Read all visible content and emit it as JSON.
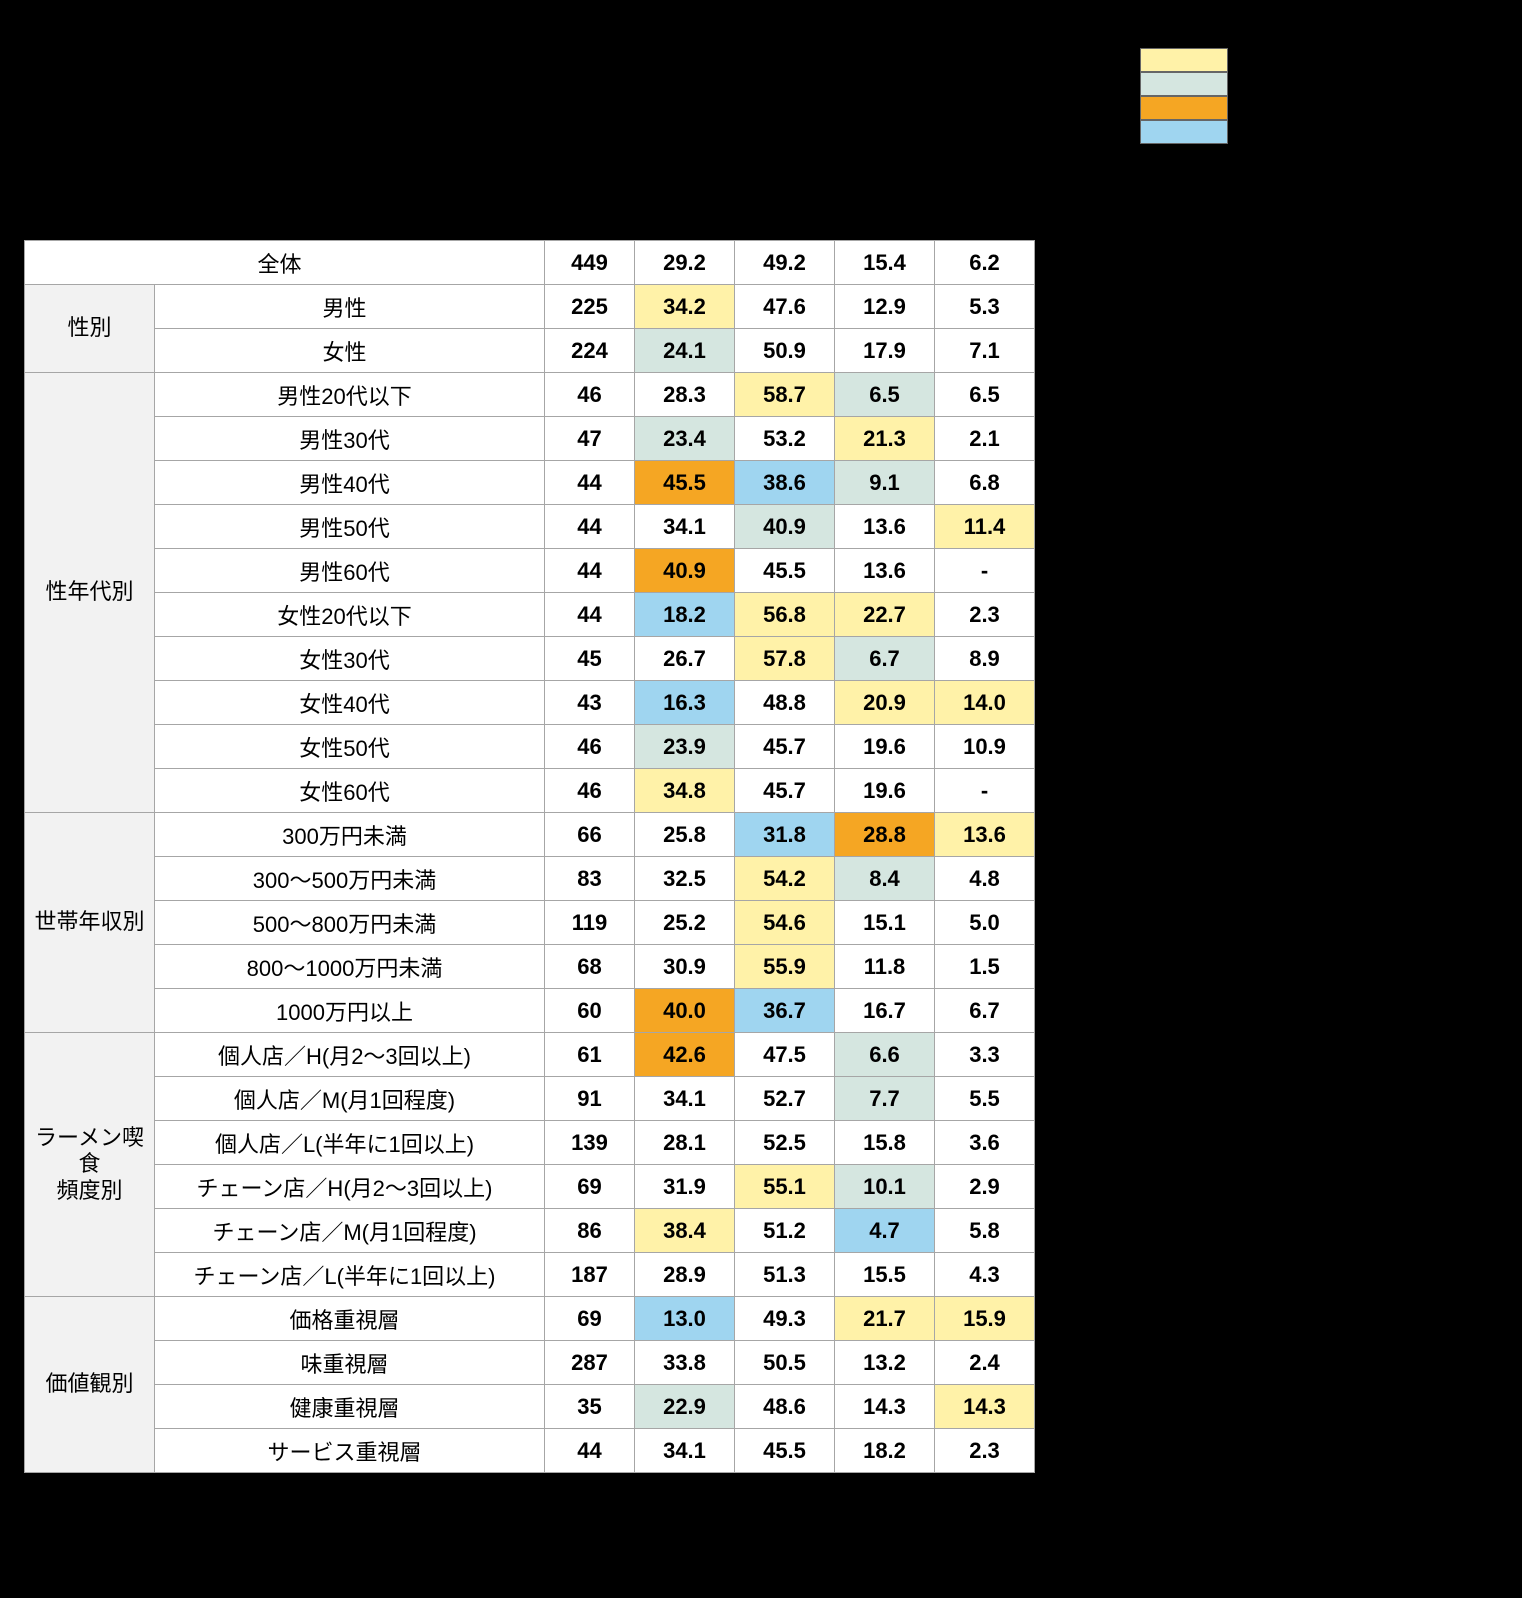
{
  "legend": {
    "colors": [
      "#fff2a8",
      "#d5e6e0",
      "#f5a623",
      "#9fd5f0"
    ]
  },
  "colors": {
    "yellow": "#fff2a8",
    "mint": "#d5e6e0",
    "orange": "#f5a623",
    "blue": "#9fd5f0",
    "white": "#ffffff"
  },
  "columns": {
    "count": 4
  },
  "total": {
    "label": "全体",
    "n": "449",
    "values": [
      "29.2",
      "49.2",
      "15.4",
      "6.2"
    ],
    "bg": [
      "white",
      "white",
      "white",
      "white"
    ]
  },
  "groups": [
    {
      "name": "性別",
      "rows": [
        {
          "label": "男性",
          "n": "225",
          "values": [
            "34.2",
            "47.6",
            "12.9",
            "5.3"
          ],
          "bg": [
            "yellow",
            "white",
            "white",
            "white"
          ]
        },
        {
          "label": "女性",
          "n": "224",
          "values": [
            "24.1",
            "50.9",
            "17.9",
            "7.1"
          ],
          "bg": [
            "mint",
            "white",
            "white",
            "white"
          ]
        }
      ]
    },
    {
      "name": "性年代別",
      "rows": [
        {
          "label": "男性20代以下",
          "n": "46",
          "values": [
            "28.3",
            "58.7",
            "6.5",
            "6.5"
          ],
          "bg": [
            "white",
            "yellow",
            "mint",
            "white"
          ]
        },
        {
          "label": "男性30代",
          "n": "47",
          "values": [
            "23.4",
            "53.2",
            "21.3",
            "2.1"
          ],
          "bg": [
            "mint",
            "white",
            "yellow",
            "white"
          ]
        },
        {
          "label": "男性40代",
          "n": "44",
          "values": [
            "45.5",
            "38.6",
            "9.1",
            "6.8"
          ],
          "bg": [
            "orange",
            "blue",
            "mint",
            "white"
          ]
        },
        {
          "label": "男性50代",
          "n": "44",
          "values": [
            "34.1",
            "40.9",
            "13.6",
            "11.4"
          ],
          "bg": [
            "white",
            "mint",
            "white",
            "yellow"
          ]
        },
        {
          "label": "男性60代",
          "n": "44",
          "values": [
            "40.9",
            "45.5",
            "13.6",
            "-"
          ],
          "bg": [
            "orange",
            "white",
            "white",
            "white"
          ]
        },
        {
          "label": "女性20代以下",
          "n": "44",
          "values": [
            "18.2",
            "56.8",
            "22.7",
            "2.3"
          ],
          "bg": [
            "blue",
            "yellow",
            "yellow",
            "white"
          ]
        },
        {
          "label": "女性30代",
          "n": "45",
          "values": [
            "26.7",
            "57.8",
            "6.7",
            "8.9"
          ],
          "bg": [
            "white",
            "yellow",
            "mint",
            "white"
          ]
        },
        {
          "label": "女性40代",
          "n": "43",
          "values": [
            "16.3",
            "48.8",
            "20.9",
            "14.0"
          ],
          "bg": [
            "blue",
            "white",
            "yellow",
            "yellow"
          ]
        },
        {
          "label": "女性50代",
          "n": "46",
          "values": [
            "23.9",
            "45.7",
            "19.6",
            "10.9"
          ],
          "bg": [
            "mint",
            "white",
            "white",
            "white"
          ]
        },
        {
          "label": "女性60代",
          "n": "46",
          "values": [
            "34.8",
            "45.7",
            "19.6",
            "-"
          ],
          "bg": [
            "yellow",
            "white",
            "white",
            "white"
          ]
        }
      ]
    },
    {
      "name": "世帯年収別",
      "rows": [
        {
          "label": "300万円未満",
          "n": "66",
          "values": [
            "25.8",
            "31.8",
            "28.8",
            "13.6"
          ],
          "bg": [
            "white",
            "blue",
            "orange",
            "yellow"
          ]
        },
        {
          "label": "300～500万円未満",
          "n": "83",
          "values": [
            "32.5",
            "54.2",
            "8.4",
            "4.8"
          ],
          "bg": [
            "white",
            "yellow",
            "mint",
            "white"
          ]
        },
        {
          "label": "500～800万円未満",
          "n": "119",
          "values": [
            "25.2",
            "54.6",
            "15.1",
            "5.0"
          ],
          "bg": [
            "white",
            "yellow",
            "white",
            "white"
          ]
        },
        {
          "label": "800～1000万円未満",
          "n": "68",
          "values": [
            "30.9",
            "55.9",
            "11.8",
            "1.5"
          ],
          "bg": [
            "white",
            "yellow",
            "white",
            "white"
          ]
        },
        {
          "label": "1000万円以上",
          "n": "60",
          "values": [
            "40.0",
            "36.7",
            "16.7",
            "6.7"
          ],
          "bg": [
            "orange",
            "blue",
            "white",
            "white"
          ]
        }
      ]
    },
    {
      "name": "ラーメン喫食\n頻度別",
      "rows": [
        {
          "label": "個人店／H(月2～3回以上)",
          "n": "61",
          "values": [
            "42.6",
            "47.5",
            "6.6",
            "3.3"
          ],
          "bg": [
            "orange",
            "white",
            "mint",
            "white"
          ]
        },
        {
          "label": "個人店／M(月1回程度)",
          "n": "91",
          "values": [
            "34.1",
            "52.7",
            "7.7",
            "5.5"
          ],
          "bg": [
            "white",
            "white",
            "mint",
            "white"
          ]
        },
        {
          "label": "個人店／L(半年に1回以上)",
          "n": "139",
          "values": [
            "28.1",
            "52.5",
            "15.8",
            "3.6"
          ],
          "bg": [
            "white",
            "white",
            "white",
            "white"
          ]
        },
        {
          "label": "チェーン店／H(月2～3回以上)",
          "n": "69",
          "values": [
            "31.9",
            "55.1",
            "10.1",
            "2.9"
          ],
          "bg": [
            "white",
            "yellow",
            "mint",
            "white"
          ]
        },
        {
          "label": "チェーン店／M(月1回程度)",
          "n": "86",
          "values": [
            "38.4",
            "51.2",
            "4.7",
            "5.8"
          ],
          "bg": [
            "yellow",
            "white",
            "blue",
            "white"
          ]
        },
        {
          "label": "チェーン店／L(半年に1回以上)",
          "n": "187",
          "values": [
            "28.9",
            "51.3",
            "15.5",
            "4.3"
          ],
          "bg": [
            "white",
            "white",
            "white",
            "white"
          ]
        }
      ]
    },
    {
      "name": "価値観別",
      "rows": [
        {
          "label": "価格重視層",
          "n": "69",
          "values": [
            "13.0",
            "49.3",
            "21.7",
            "15.9"
          ],
          "bg": [
            "blue",
            "white",
            "yellow",
            "yellow"
          ]
        },
        {
          "label": "味重視層",
          "n": "287",
          "values": [
            "33.8",
            "50.5",
            "13.2",
            "2.4"
          ],
          "bg": [
            "white",
            "white",
            "white",
            "white"
          ]
        },
        {
          "label": "健康重視層",
          "n": "35",
          "values": [
            "22.9",
            "48.6",
            "14.3",
            "14.3"
          ],
          "bg": [
            "mint",
            "white",
            "white",
            "yellow"
          ]
        },
        {
          "label": "サービス重視層",
          "n": "44",
          "values": [
            "34.1",
            "45.5",
            "18.2",
            "2.3"
          ],
          "bg": [
            "white",
            "white",
            "white",
            "white"
          ]
        }
      ]
    }
  ]
}
